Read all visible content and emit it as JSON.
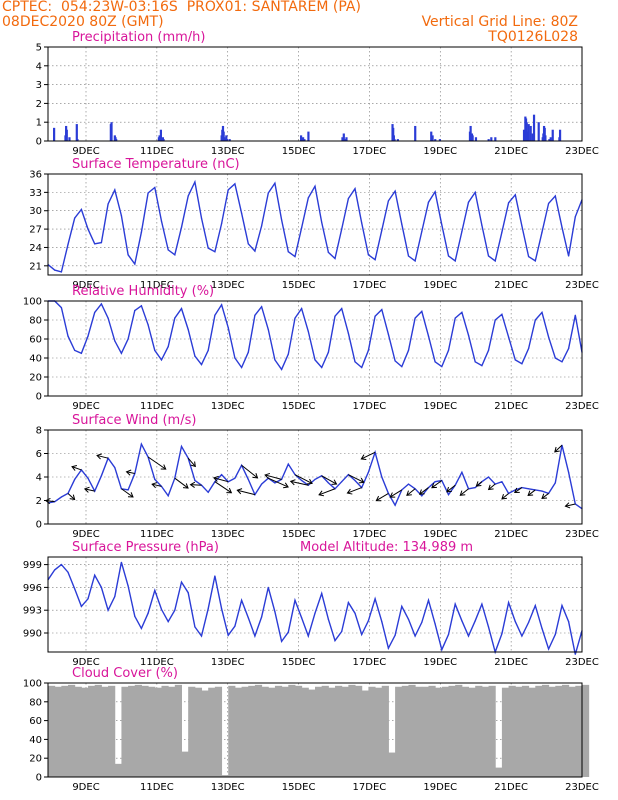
{
  "header": {
    "left_line1": "CPTEC:  054:23W-03:16S  PROX01: SANTAREM (PA)",
    "left_line2": "08DEC2020 80Z (GMT)",
    "right_line1": "Vertical Grid Line: 80Z",
    "right_line2": "TQ0126L028"
  },
  "colors": {
    "header": "#f26a0e",
    "title": "#d8159a",
    "series": "#2b3cd6",
    "cloud": "#a8a8a8"
  },
  "chart_data": [
    {
      "id": "precipitation",
      "type": "bar",
      "title": "Precipitation (mm/h)",
      "ylim": [
        0,
        5
      ],
      "yticks": [
        "0",
        "1",
        "2",
        "3",
        "4",
        "5"
      ],
      "xlabels": [
        "9DEC",
        "11DEC",
        "13DEC",
        "15DEC",
        "17DEC",
        "19DEC",
        "21DEC",
        "23DEC"
      ],
      "x": [
        0.9,
        2.6,
        2.7,
        2.8,
        3.2,
        4.3,
        4.4,
        9.4,
        9.5,
        10.0,
        10.1,
        10.2,
        16.6,
        16.7,
        16.8,
        16.9,
        17.2,
        17.3,
        26.0,
        26.1,
        26.2,
        26.3,
        26.4,
        26.5,
        26.6,
        26.7,
        26.8,
        27.2,
        37.9,
        38.0,
        38.1,
        38.2,
        38.4,
        39.0,
        44.1,
        44.3,
        44.4,
        44.7,
        51.6,
        51.7,
        51.8,
        51.9,
        52.4,
        55.0,
        57.4,
        57.6,
        58.0,
        58.7,
        63.2,
        63.3,
        63.4,
        63.5,
        63.6,
        64.1,
        66.0,
        66.4,
        67.0,
        71.3,
        71.5,
        71.6,
        71.7,
        71.8,
        72.0,
        72.3,
        72.6,
        72.8,
        73.5,
        74.1,
        74.2,
        74.3,
        74.4,
        74.5,
        75.1,
        75.3,
        75.6,
        76.6,
        76.7
      ],
      "values": [
        0.7,
        0.3,
        0.8,
        0.6,
        0.2,
        0.9,
        0.1,
        0.9,
        1.0,
        0.3,
        0.2,
        0.1,
        0.2,
        0.3,
        0.1,
        0.6,
        0.2,
        0.1,
        0.3,
        0.6,
        0.8,
        0.5,
        0.2,
        0.1,
        0.1,
        0.3,
        0.1,
        0.1,
        0.3,
        0.1,
        0.1,
        0.2,
        0.1,
        0.5,
        0.2,
        0.4,
        0.1,
        0.2,
        0.9,
        0.7,
        0.3,
        0.1,
        0.1,
        0.8,
        0.5,
        0.3,
        0.1,
        0.1,
        0.5,
        0.8,
        0.3,
        0.4,
        0.3,
        0.2,
        0.1,
        0.2,
        0.2,
        0.6,
        1.3,
        1.2,
        1.0,
        0.5,
        0.9,
        0.8,
        0.4,
        1.4,
        1.0,
        0.2,
        0.4,
        0.8,
        0.7,
        0.3,
        0.1,
        0.2,
        0.6,
        0.2,
        0.6
      ]
    },
    {
      "id": "temperature",
      "type": "line",
      "title": "Surface Temperature (nC)",
      "ylim": [
        19.5,
        36
      ],
      "yticks": [
        "21",
        "24",
        "27",
        "30",
        "33",
        "36"
      ],
      "xlabels": [
        "9DEC",
        "11DEC",
        "13DEC",
        "15DEC",
        "17DEC",
        "19DEC",
        "21DEC",
        "23DEC"
      ],
      "x": [
        0,
        1,
        2,
        3,
        4,
        5,
        6,
        7,
        8,
        9,
        10,
        11,
        12,
        13,
        14,
        15,
        16,
        17,
        18,
        19,
        20,
        21,
        22,
        23,
        24,
        25,
        26,
        27,
        28,
        29,
        30,
        31,
        32,
        33,
        34,
        35,
        36,
        37,
        38,
        39,
        40,
        41,
        42,
        43,
        44,
        45,
        46,
        47,
        48,
        49,
        50,
        51,
        52,
        53,
        54,
        55,
        56,
        57,
        58,
        59,
        60,
        61,
        62,
        63,
        64,
        65,
        66,
        67,
        68,
        69,
        70,
        71,
        72,
        73,
        74,
        75,
        76,
        77,
        78,
        79,
        80
      ],
      "values": [
        21.2,
        20.3,
        20.0,
        24.5,
        28.8,
        30.2,
        27.0,
        24.6,
        24.8,
        31.1,
        33.4,
        29.2,
        22.8,
        21.3,
        26.5,
        32.9,
        33.8,
        28.3,
        23.6,
        22.8,
        27.3,
        32.4,
        34.7,
        28.8,
        23.9,
        23.3,
        27.9,
        33.4,
        34.4,
        29.6,
        24.6,
        23.4,
        27.5,
        32.9,
        34.5,
        28.5,
        23.3,
        22.5,
        27.2,
        32.1,
        34.0,
        28.1,
        23.2,
        22.2,
        27.0,
        32.0,
        33.6,
        28.0,
        22.8,
        22.0,
        26.8,
        31.6,
        33.2,
        27.8,
        22.6,
        21.8,
        26.6,
        31.4,
        33.1,
        27.7,
        22.6,
        21.8,
        26.6,
        31.4,
        33.0,
        27.6,
        22.6,
        21.8,
        26.5,
        31.3,
        32.6,
        27.5,
        22.5,
        21.8,
        26.5,
        31.2,
        32.4,
        27.3,
        22.6,
        29.0,
        31.8
      ]
    },
    {
      "id": "humidity",
      "type": "line",
      "title": "Relative Humidity (%)",
      "ylim": [
        0,
        100
      ],
      "yticks": [
        "0",
        "20",
        "40",
        "60",
        "80",
        "100"
      ],
      "xlabels": [
        "9DEC",
        "11DEC",
        "13DEC",
        "15DEC",
        "17DEC",
        "19DEC",
        "21DEC",
        "23DEC"
      ],
      "x": [
        0,
        1,
        2,
        3,
        4,
        5,
        6,
        7,
        8,
        9,
        10,
        11,
        12,
        13,
        14,
        15,
        16,
        17,
        18,
        19,
        20,
        21,
        22,
        23,
        24,
        25,
        26,
        27,
        28,
        29,
        30,
        31,
        32,
        33,
        34,
        35,
        36,
        37,
        38,
        39,
        40,
        41,
        42,
        43,
        44,
        45,
        46,
        47,
        48,
        49,
        50,
        51,
        52,
        53,
        54,
        55,
        56,
        57,
        58,
        59,
        60,
        61,
        62,
        63,
        64,
        65,
        66,
        67,
        68,
        69,
        70,
        71,
        72,
        73,
        74,
        75,
        76,
        77,
        78,
        79,
        80
      ],
      "values": [
        100,
        100,
        93,
        63,
        48,
        45,
        63,
        88,
        97,
        82,
        58,
        45,
        60,
        90,
        95,
        75,
        48,
        38,
        52,
        82,
        92,
        70,
        42,
        33,
        48,
        85,
        96,
        72,
        40,
        30,
        46,
        85,
        94,
        70,
        38,
        28,
        44,
        82,
        92,
        68,
        38,
        30,
        46,
        84,
        92,
        66,
        36,
        30,
        48,
        84,
        91,
        65,
        37,
        31,
        48,
        82,
        89,
        63,
        36,
        31,
        48,
        82,
        88,
        64,
        36,
        32,
        48,
        80,
        86,
        62,
        38,
        34,
        50,
        80,
        88,
        62,
        40,
        36,
        50,
        85,
        46
      ]
    },
    {
      "id": "wind",
      "type": "line",
      "title": "Surface Wind (m/s)",
      "ylim": [
        0,
        8
      ],
      "yticks": [
        "0",
        "2",
        "4",
        "6",
        "8"
      ],
      "xlabels": [
        "9DEC",
        "11DEC",
        "13DEC",
        "15DEC",
        "17DEC",
        "19DEC",
        "21DEC",
        "23DEC"
      ],
      "x": [
        0,
        1,
        2,
        3,
        4,
        5,
        6,
        7,
        8,
        9,
        10,
        11,
        12,
        13,
        14,
        15,
        16,
        17,
        18,
        19,
        20,
        21,
        22,
        23,
        24,
        25,
        26,
        27,
        28,
        29,
        30,
        31,
        32,
        33,
        34,
        35,
        36,
        37,
        38,
        39,
        40,
        41,
        42,
        43,
        44,
        45,
        46,
        47,
        48,
        49,
        50,
        51,
        52,
        53,
        54,
        55,
        56,
        57,
        58,
        59,
        60,
        61,
        62,
        63,
        64,
        65,
        66,
        67,
        68,
        69,
        70,
        71,
        72,
        73,
        74,
        75,
        76,
        77,
        78,
        79,
        80
      ],
      "values": [
        1.8,
        1.9,
        2.3,
        2.6,
        3.8,
        4.6,
        3.9,
        2.8,
        4.1,
        5.6,
        4.8,
        3.0,
        2.9,
        4.3,
        6.8,
        5.7,
        3.8,
        3.2,
        2.4,
        3.9,
        6.6,
        5.6,
        3.7,
        3.3,
        2.7,
        3.6,
        4.2,
        3.6,
        3.9,
        5.0,
        3.8,
        2.5,
        3.4,
        3.9,
        3.5,
        3.8,
        5.1,
        4.2,
        3.7,
        3.3,
        3.8,
        4.1,
        3.5,
        3.0,
        3.6,
        4.2,
        3.7,
        3.1,
        4.4,
        6.1,
        4.0,
        2.6,
        1.6,
        2.9,
        3.4,
        3.0,
        2.4,
        3.1,
        3.6,
        3.7,
        2.5,
        3.3,
        4.4,
        3.0,
        3.1,
        3.6,
        4.0,
        3.4,
        3.6,
        2.6,
        2.9,
        3.1,
        3.0,
        2.9,
        2.8,
        2.6,
        3.5,
        6.7,
        4.4,
        1.7,
        1.3
      ],
      "vectors": {
        "x": [
          1,
          3,
          5,
          7,
          9,
          11,
          13,
          15,
          17,
          19,
          21,
          23,
          25,
          27,
          29,
          31,
          33,
          35,
          37,
          39,
          41,
          43,
          45,
          47,
          49,
          51,
          53,
          55,
          57,
          59,
          61,
          63,
          65,
          67,
          69,
          71,
          73,
          75,
          77,
          79
        ],
        "u": [
          -1.6,
          1.2,
          -1.7,
          -1.8,
          -2.0,
          2.1,
          -1.5,
          3.2,
          -1.7,
          2.4,
          1.3,
          -2.0,
          3.0,
          -2.6,
          2.9,
          -3.2,
          3.6,
          -3.0,
          3.1,
          -3.2,
          2.7,
          -2.9,
          2.8,
          -2.6,
          -2.5,
          -2.2,
          -2.1,
          -1.5,
          -1.6,
          -1.8,
          -1.5,
          -1.5,
          -1.0,
          -1.2,
          -1.2,
          -1.3,
          -1.3,
          -1.2,
          -1.3,
          -1.8
        ],
        "v": [
          0.2,
          -1.1,
          0.6,
          0.4,
          0.5,
          -1.5,
          0.3,
          -2.2,
          0.4,
          -1.8,
          -1.5,
          0.1,
          -2.0,
          0.7,
          -2.3,
          0.8,
          -1.6,
          0.8,
          -1.6,
          0.7,
          -1.5,
          -1.1,
          -1.4,
          -1.0,
          -1.2,
          -1.3,
          -1.3,
          -1.2,
          -1.2,
          -1.3,
          -1.2,
          -1.2,
          -0.8,
          -1.0,
          -1.0,
          -0.9,
          -1.0,
          -0.9,
          -1.2,
          -0.4
        ]
      }
    },
    {
      "id": "pressure",
      "type": "line",
      "title": "Surface Pressure (hPa)",
      "annotation": "Model Altitude: 134.989 m",
      "ylim": [
        987.5,
        1000
      ],
      "yticks": [
        "990",
        "993",
        "996",
        "999"
      ],
      "xlabels": [
        "9DEC",
        "11DEC",
        "13DEC",
        "15DEC",
        "17DEC",
        "19DEC",
        "21DEC",
        "23DEC"
      ],
      "x": [
        0,
        1,
        2,
        3,
        4,
        5,
        6,
        7,
        8,
        9,
        10,
        11,
        12,
        13,
        14,
        15,
        16,
        17,
        18,
        19,
        20,
        21,
        22,
        23,
        24,
        25,
        26,
        27,
        28,
        29,
        30,
        31,
        32,
        33,
        34,
        35,
        36,
        37,
        38,
        39,
        40,
        41,
        42,
        43,
        44,
        45,
        46,
        47,
        48,
        49,
        50,
        51,
        52,
        53,
        54,
        55,
        56,
        57,
        58,
        59,
        60,
        61,
        62,
        63,
        64,
        65,
        66,
        67,
        68,
        69,
        70,
        71,
        72,
        73,
        74,
        75,
        76,
        77,
        78,
        79,
        80
      ],
      "values": [
        997.0,
        998.3,
        999.0,
        998.0,
        995.8,
        993.5,
        994.5,
        997.6,
        996.0,
        993.0,
        994.8,
        999.3,
        996.2,
        992.2,
        990.6,
        992.6,
        995.6,
        993.1,
        991.5,
        993.0,
        996.7,
        995.3,
        990.8,
        989.6,
        993.2,
        997.5,
        993.2,
        989.7,
        990.9,
        994.3,
        992.0,
        989.6,
        992.1,
        996.0,
        992.8,
        988.9,
        990.1,
        994.3,
        992.0,
        989.6,
        992.6,
        995.2,
        991.8,
        989.0,
        990.2,
        994.0,
        992.6,
        989.8,
        991.6,
        994.5,
        991.5,
        988.0,
        989.7,
        993.5,
        991.8,
        989.6,
        991.4,
        994.3,
        991.2,
        987.8,
        989.8,
        993.8,
        991.6,
        989.6,
        991.6,
        993.8,
        990.8,
        987.5,
        989.9,
        994.0,
        991.5,
        989.6,
        991.4,
        993.6,
        990.6,
        987.9,
        989.8,
        993.6,
        991.5,
        987.2,
        990.3
      ]
    },
    {
      "id": "cloud",
      "type": "area",
      "title": "Cloud Cover (%)",
      "ylim": [
        0,
        100
      ],
      "yticks": [
        "0",
        "20",
        "40",
        "60",
        "80",
        "100"
      ],
      "xlabels": [
        "9DEC",
        "11DEC",
        "13DEC",
        "15DEC",
        "17DEC",
        "19DEC",
        "21DEC",
        "23DEC"
      ],
      "x": [
        0,
        1,
        2,
        3,
        4,
        5,
        6,
        7,
        8,
        9,
        10,
        11,
        12,
        13,
        14,
        15,
        16,
        17,
        18,
        19,
        20,
        21,
        22,
        23,
        24,
        25,
        26,
        27,
        28,
        29,
        30,
        31,
        32,
        33,
        34,
        35,
        36,
        37,
        38,
        39,
        40,
        41,
        42,
        43,
        44,
        45,
        46,
        47,
        48,
        49,
        50,
        51,
        52,
        53,
        54,
        55,
        56,
        57,
        58,
        59,
        60,
        61,
        62,
        63,
        64,
        65,
        66,
        67,
        68,
        69,
        70,
        71,
        72,
        73,
        74,
        75,
        76,
        77,
        78,
        79,
        80
      ],
      "values": [
        97,
        96,
        97,
        98,
        96,
        95,
        97,
        98,
        96,
        97,
        14,
        96,
        97,
        98,
        97,
        96,
        95,
        97,
        96,
        98,
        27,
        96,
        95,
        92,
        95,
        96,
        2,
        97,
        95,
        96,
        97,
        98,
        96,
        95,
        97,
        96,
        98,
        97,
        95,
        93,
        96,
        97,
        95,
        97,
        96,
        98,
        97,
        92,
        96,
        95,
        97,
        26,
        96,
        97,
        98,
        96,
        96,
        97,
        95,
        96,
        97,
        98,
        96,
        95,
        97,
        96,
        97,
        10,
        95,
        97,
        96,
        97,
        95,
        97,
        98,
        96,
        97,
        98,
        96,
        97,
        98
      ]
    }
  ]
}
